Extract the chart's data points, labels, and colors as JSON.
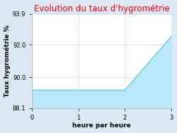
{
  "title": "Evolution du taux d'hygrométrie",
  "title_color": "#ff0000",
  "xlabel": "heure par heure",
  "ylabel": "Taux hygrométrie %",
  "x": [
    0,
    2,
    3
  ],
  "y": [
    89.2,
    89.2,
    92.5
  ],
  "xlim": [
    0,
    3
  ],
  "ylim": [
    88.1,
    93.9
  ],
  "yticks": [
    88.1,
    90.0,
    92.0,
    93.9
  ],
  "xticks": [
    0,
    1,
    2,
    3
  ],
  "line_color": "#5bc8e8",
  "fill_color": "#b8e8f8",
  "background_color": "#dce9f5",
  "plot_bg_color": "#ffffff",
  "grid_color": "#cccccc",
  "spine_color": "#aaaaaa",
  "title_fontsize": 8.5,
  "label_fontsize": 6.5,
  "tick_fontsize": 6
}
